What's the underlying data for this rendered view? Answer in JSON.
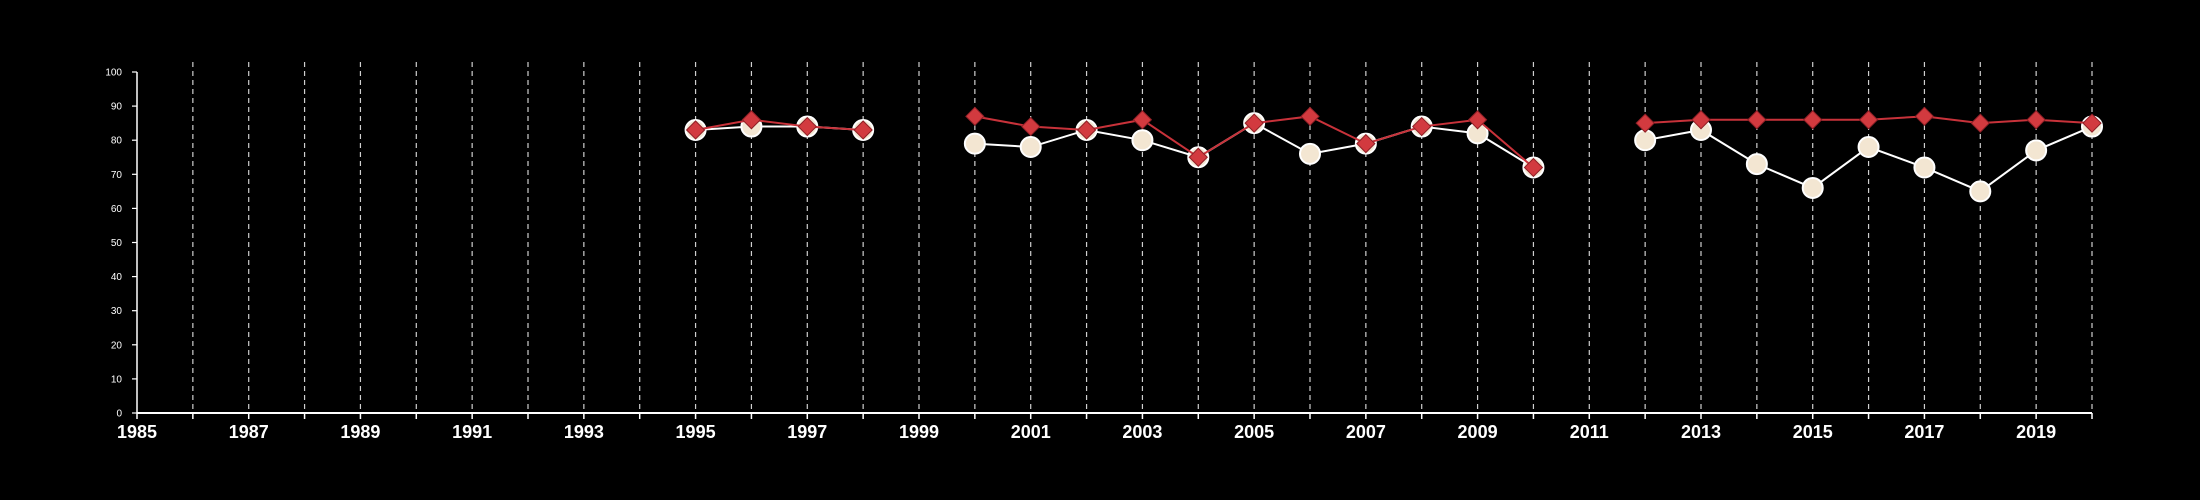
{
  "chart_data": {
    "type": "line",
    "title": "",
    "xlabel": "",
    "ylabel": "",
    "xlim": [
      1985,
      2020
    ],
    "ylim": [
      0,
      100
    ],
    "y_ticks": [
      0,
      10,
      20,
      30,
      40,
      50,
      60,
      70,
      80,
      90,
      100
    ],
    "x_tick_labels": [
      "1985",
      "1987",
      "1989",
      "1991",
      "1993",
      "1995",
      "1997",
      "1999",
      "2001",
      "2003",
      "2005",
      "2007",
      "2009",
      "2011",
      "2013",
      "2015",
      "2017",
      "2019"
    ],
    "vertical_gridlines": "dashed, every year",
    "legend": "none",
    "series": [
      {
        "marker": "circle",
        "color": "#ffffff",
        "marker_fill": "#f3e6d2",
        "x": [
          1995,
          1996,
          1997,
          1998,
          2000,
          2001,
          2002,
          2003,
          2004,
          2005,
          2006,
          2007,
          2008,
          2009,
          2010,
          2012,
          2013,
          2014,
          2015,
          2016,
          2017,
          2018,
          2019,
          2020
        ],
        "values": [
          83,
          84,
          84,
          83,
          79,
          78,
          83,
          80,
          75,
          85,
          76,
          79,
          84,
          82,
          72,
          80,
          83,
          73,
          66,
          78,
          72,
          65,
          77,
          84
        ]
      },
      {
        "marker": "diamond",
        "color": "#c8323a",
        "marker_fill": "#d23a3f",
        "x": [
          1995,
          1996,
          1997,
          1998,
          2000,
          2001,
          2002,
          2003,
          2004,
          2005,
          2006,
          2007,
          2008,
          2009,
          2010,
          2012,
          2013,
          2014,
          2015,
          2016,
          2017,
          2018,
          2019,
          2020
        ],
        "values": [
          83,
          86,
          84,
          83,
          87,
          84,
          83,
          86,
          75,
          85,
          87,
          79,
          84,
          86,
          72,
          85,
          86,
          86,
          86,
          86,
          87,
          85,
          86,
          85
        ]
      }
    ]
  }
}
